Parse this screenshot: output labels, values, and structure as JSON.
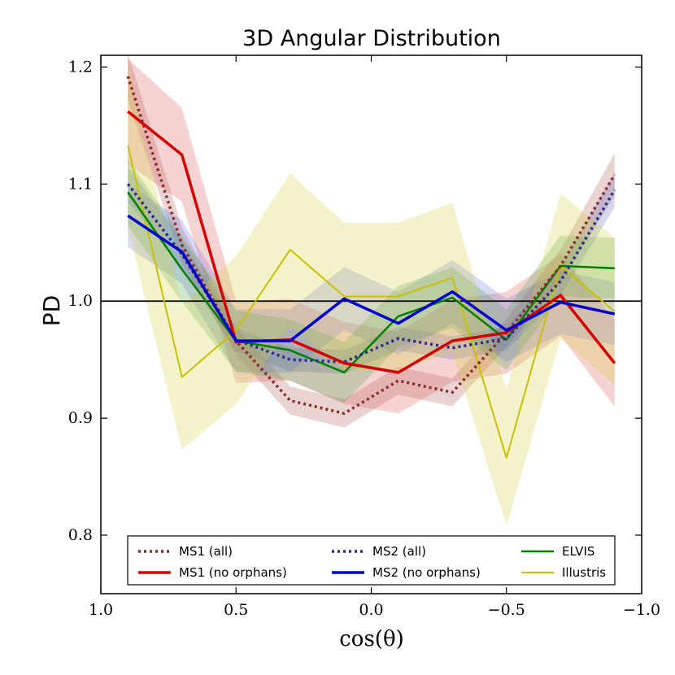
{
  "chart_data": {
    "type": "line",
    "title": "3D Angular Distribution",
    "xlabel": "cos(θ)",
    "ylabel": "PD",
    "xlim": [
      1.0,
      -1.0
    ],
    "ylim": [
      0.75,
      1.21
    ],
    "xticks": [
      {
        "value": 1.0,
        "label": "1.0"
      },
      {
        "value": 0.5,
        "label": "0.5"
      },
      {
        "value": 0.0,
        "label": "0.0"
      },
      {
        "value": -0.5,
        "label": "−0.5"
      },
      {
        "value": -1.0,
        "label": "−1.0"
      }
    ],
    "yticks": [
      {
        "value": 0.8,
        "label": "0.8"
      },
      {
        "value": 0.9,
        "label": "0.9"
      },
      {
        "value": 1.0,
        "label": "1.0"
      },
      {
        "value": 1.1,
        "label": "1.1"
      },
      {
        "value": 1.2,
        "label": "1.2"
      }
    ],
    "reference_line": 1.0,
    "x": [
      0.9,
      0.7,
      0.5,
      0.3,
      0.1,
      -0.1,
      -0.3,
      -0.5,
      -0.7,
      -0.9
    ],
    "legend_position": "lower-center",
    "series": [
      {
        "name": "MS1 (all)",
        "color": "#8b2a2a",
        "style": "dotted",
        "width": 3.5,
        "values": [
          1.192,
          1.048,
          0.966,
          0.915,
          0.904,
          0.932,
          0.922,
          0.973,
          1.03,
          1.108
        ],
        "band_halfwidth": [
          0.02,
          0.015,
          0.012,
          0.012,
          0.012,
          0.012,
          0.012,
          0.012,
          0.014,
          0.018
        ],
        "band_color": "#b06060",
        "band_opacity": 0.28
      },
      {
        "name": "MS1 (no orphans)",
        "color": "#d40000",
        "style": "solid",
        "width": 3.5,
        "values": [
          1.162,
          1.125,
          0.965,
          0.967,
          0.947,
          0.939,
          0.966,
          0.973,
          1.005,
          0.947
        ],
        "band_halfwidth": [
          0.045,
          0.04,
          0.035,
          0.035,
          0.035,
          0.035,
          0.035,
          0.035,
          0.035,
          0.037
        ],
        "band_color": "#e06060",
        "band_opacity": 0.28
      },
      {
        "name": "MS2 (all)",
        "color": "#2a2a8b",
        "style": "dotted",
        "width": 3.5,
        "values": [
          1.1,
          1.04,
          0.967,
          0.95,
          0.948,
          0.968,
          0.96,
          0.968,
          1.017,
          1.095
        ],
        "band_halfwidth": [
          0.015,
          0.012,
          0.01,
          0.01,
          0.01,
          0.01,
          0.01,
          0.01,
          0.012,
          0.015
        ],
        "band_color": "#6060b0",
        "band_opacity": 0.25
      },
      {
        "name": "MS2 (no orphans)",
        "color": "#0000cc",
        "style": "solid",
        "width": 3.5,
        "values": [
          1.073,
          1.042,
          0.966,
          0.966,
          1.002,
          0.981,
          1.008,
          0.975,
          0.999,
          0.989
        ],
        "band_halfwidth": [
          0.027,
          0.027,
          0.027,
          0.027,
          0.027,
          0.027,
          0.027,
          0.027,
          0.027,
          0.027
        ],
        "band_color": "#6a6ae6",
        "band_opacity": 0.25
      },
      {
        "name": "ELVIS",
        "color": "#008000",
        "style": "solid",
        "width": 2.5,
        "values": [
          1.093,
          1.027,
          0.966,
          0.958,
          0.939,
          0.987,
          1.003,
          0.967,
          1.03,
          1.028
        ],
        "band_halfwidth": [
          0.028,
          0.028,
          0.026,
          0.026,
          0.026,
          0.026,
          0.026,
          0.026,
          0.026,
          0.026
        ],
        "band_color": "#40a040",
        "band_opacity": 0.25
      },
      {
        "name": "Illustris",
        "color": "#c8c000",
        "style": "solid",
        "width": 2,
        "values": [
          1.133,
          0.935,
          0.975,
          1.044,
          1.004,
          1.004,
          1.02,
          0.866,
          1.03,
          0.991
        ],
        "band_halfwidth": [
          0.07,
          0.062,
          0.063,
          0.065,
          0.063,
          0.063,
          0.064,
          0.058,
          0.062,
          0.063
        ],
        "band_color": "#d4d040",
        "band_opacity": 0.28
      }
    ]
  }
}
